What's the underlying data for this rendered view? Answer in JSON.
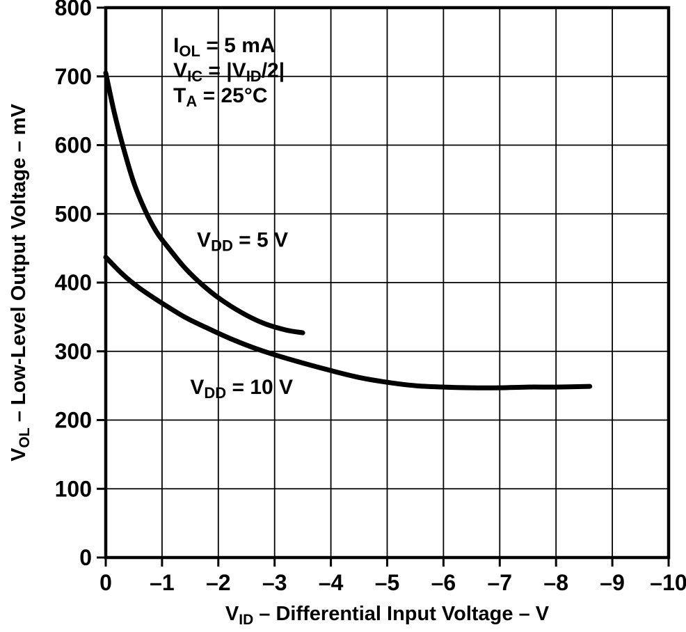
{
  "colors": {
    "background": "#ffffff",
    "foreground": "#000000"
  },
  "chart_data": {
    "type": "line",
    "title": "",
    "xlabel": "VID – Differential Input Voltage – V",
    "ylabel": "VOL – Low-Level Output Voltage – mV",
    "xlabel_segments": [
      {
        "t": "V"
      },
      {
        "t": "ID",
        "sub": true
      },
      {
        "t": " – Differential Input Voltage – V"
      }
    ],
    "ylabel_segments": [
      {
        "t": "V"
      },
      {
        "t": "OL",
        "sub": true
      },
      {
        "t": " – Low-Level Output Voltage – mV"
      }
    ],
    "xlim": [
      0,
      -10
    ],
    "ylim": [
      0,
      800
    ],
    "grid": true,
    "legend_position": "inline-labels",
    "xticks": [
      {
        "v": 0,
        "label": "0"
      },
      {
        "v": -1,
        "label": "–1"
      },
      {
        "v": -2,
        "label": "–2"
      },
      {
        "v": -3,
        "label": "–3"
      },
      {
        "v": -4,
        "label": "–4"
      },
      {
        "v": -5,
        "label": "–5"
      },
      {
        "v": -6,
        "label": "–6"
      },
      {
        "v": -7,
        "label": "–7"
      },
      {
        "v": -8,
        "label": "–8"
      },
      {
        "v": -9,
        "label": "–9"
      },
      {
        "v": -10,
        "label": "–10"
      }
    ],
    "yticks": [
      {
        "v": 0,
        "label": "0"
      },
      {
        "v": 100,
        "label": "100"
      },
      {
        "v": 200,
        "label": "200"
      },
      {
        "v": 300,
        "label": "300"
      },
      {
        "v": 400,
        "label": "400"
      },
      {
        "v": 500,
        "label": "500"
      },
      {
        "v": 600,
        "label": "600"
      },
      {
        "v": 700,
        "label": "700"
      },
      {
        "v": 800,
        "label": "800"
      }
    ],
    "annotations": {
      "x": -1.2,
      "y": 735,
      "lines": [
        {
          "text": "IOL = 5 mA",
          "segments": [
            {
              "t": "I"
            },
            {
              "t": "OL",
              "sub": true
            },
            {
              "t": " = 5 mA"
            }
          ]
        },
        {
          "text": "VIC = |VID/2|",
          "segments": [
            {
              "t": "V"
            },
            {
              "t": "IC",
              "sub": true
            },
            {
              "t": " = |V"
            },
            {
              "t": "ID",
              "sub": true
            },
            {
              "t": "/2|"
            }
          ]
        },
        {
          "text": "TA = 25°C",
          "segments": [
            {
              "t": "T"
            },
            {
              "t": "A",
              "sub": true
            },
            {
              "t": " = 25°C"
            }
          ]
        }
      ]
    },
    "series": [
      {
        "name": "VDD = 5 V",
        "label_segments": [
          {
            "t": "V"
          },
          {
            "t": "DD",
            "sub": true
          },
          {
            "t": " = 5 V"
          }
        ],
        "label_pos": {
          "x": -1.62,
          "y": 452
        },
        "x": [
          0,
          -0.15,
          -0.3,
          -0.5,
          -0.7,
          -0.9,
          -1.1,
          -1.4,
          -1.7,
          -2.0,
          -2.4,
          -2.8,
          -3.2,
          -3.5
        ],
        "y": [
          705,
          648,
          600,
          545,
          505,
          474,
          452,
          422,
          398,
          378,
          357,
          341,
          331,
          327
        ]
      },
      {
        "name": "VDD = 10 V",
        "label_segments": [
          {
            "t": "V"
          },
          {
            "t": "DD",
            "sub": true
          },
          {
            "t": " = 10 V"
          }
        ],
        "label_pos": {
          "x": -1.5,
          "y": 238
        },
        "x": [
          0,
          -0.3,
          -0.6,
          -1.0,
          -1.4,
          -1.8,
          -2.2,
          -2.6,
          -3.0,
          -3.5,
          -4.0,
          -4.5,
          -5.0,
          -5.5,
          -6.0,
          -6.5,
          -7.0,
          -7.5,
          -8.0,
          -8.6
        ],
        "y": [
          437,
          412,
          392,
          370,
          350,
          334,
          319,
          306,
          295,
          283,
          272,
          262,
          255,
          250,
          248,
          247,
          247,
          248,
          248,
          249
        ]
      }
    ]
  }
}
